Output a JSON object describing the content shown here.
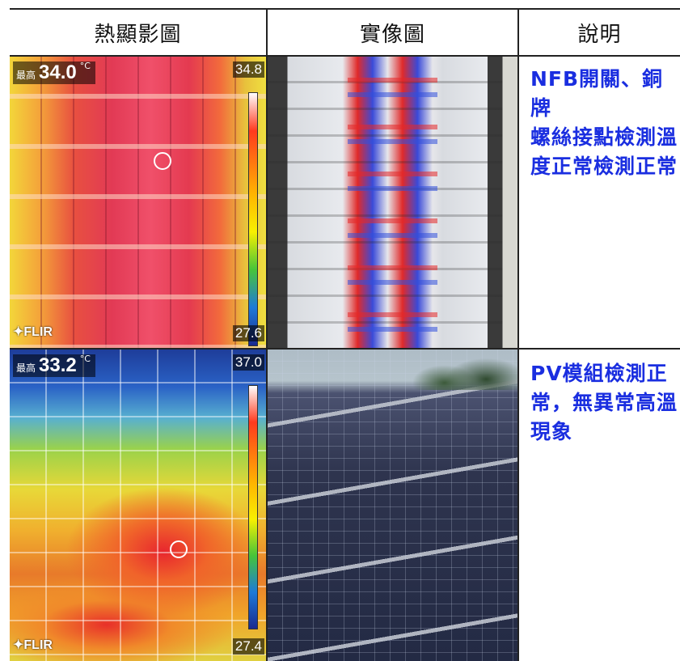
{
  "table": {
    "headers": [
      "熱顯影圖",
      "實像圖",
      "說明"
    ]
  },
  "rows": [
    {
      "thermal": {
        "max_label": "最高",
        "max_value": "34.0",
        "unit": "°C",
        "scale_top": "34.8",
        "scale_bottom": "27.6",
        "brand": "FLIR"
      },
      "photo_icon": "breaker-panel-photo",
      "description": [
        "NFB開關、銅牌",
        "螺絲接點檢測溫",
        "度正常檢測正常"
      ]
    },
    {
      "thermal": {
        "max_label": "最高",
        "max_value": "33.2",
        "unit": "°C",
        "scale_top": "37.0",
        "scale_bottom": "27.4",
        "brand": "FLIR"
      },
      "photo_icon": "solar-panel-photo",
      "description": [
        "PV模組檢測正",
        "常，無異常高溫",
        "現象"
      ]
    }
  ],
  "colors": {
    "description_text": "#1a2ee0",
    "grid_lines": "#222222"
  }
}
